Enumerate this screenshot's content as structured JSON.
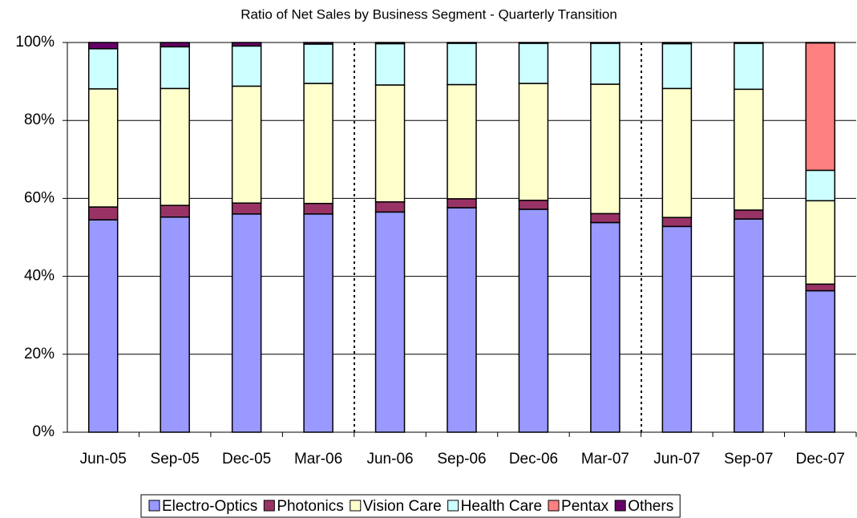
{
  "chart_data": {
    "type": "stacked_bar",
    "title": "Ratio of Net Sales by Business Segment - Quarterly Transition",
    "categories": [
      "Jun-05",
      "Sep-05",
      "Dec-05",
      "Mar-06",
      "Jun-06",
      "Sep-06",
      "Dec-06",
      "Mar-07",
      "Jun-07",
      "Sep-07",
      "Dec-07"
    ],
    "series": [
      {
        "name": "Electro-Optics",
        "color": "#9999ff",
        "values": [
          54.5,
          55.2,
          56.0,
          56.0,
          56.5,
          57.6,
          57.2,
          53.8,
          52.8,
          54.7,
          36.3
        ]
      },
      {
        "name": "Photonics",
        "color": "#993366",
        "values": [
          3.3,
          3.0,
          2.8,
          2.7,
          2.6,
          2.3,
          2.3,
          2.3,
          2.3,
          2.3,
          1.7
        ]
      },
      {
        "name": "Vision Care",
        "color": "#ffffcc",
        "values": [
          30.3,
          30.0,
          30.0,
          30.8,
          30.0,
          29.3,
          30.0,
          33.2,
          33.1,
          31.0,
          21.4
        ]
      },
      {
        "name": "Health Care",
        "color": "#ccffff",
        "values": [
          10.3,
          10.7,
          10.3,
          10.1,
          10.6,
          10.6,
          10.3,
          10.5,
          11.5,
          11.8,
          7.8
        ]
      },
      {
        "name": "Pentax",
        "color": "#ff8080",
        "values": [
          0,
          0,
          0,
          0,
          0,
          0,
          0,
          0,
          0,
          0,
          32.7
        ]
      },
      {
        "name": "Others",
        "color": "#660066",
        "values": [
          1.6,
          1.1,
          0.9,
          0.4,
          0.3,
          0.2,
          0.2,
          0.2,
          0.3,
          0.2,
          0.1
        ]
      }
    ],
    "ylim": [
      0,
      100
    ],
    "yticks": [
      {
        "value": 0,
        "label": "0%"
      },
      {
        "value": 20,
        "label": "20%"
      },
      {
        "value": 40,
        "label": "40%"
      },
      {
        "value": 60,
        "label": "60%"
      },
      {
        "value": 80,
        "label": "80%"
      },
      {
        "value": 100,
        "label": "100%"
      }
    ],
    "grid": true,
    "legend": "bottom"
  }
}
